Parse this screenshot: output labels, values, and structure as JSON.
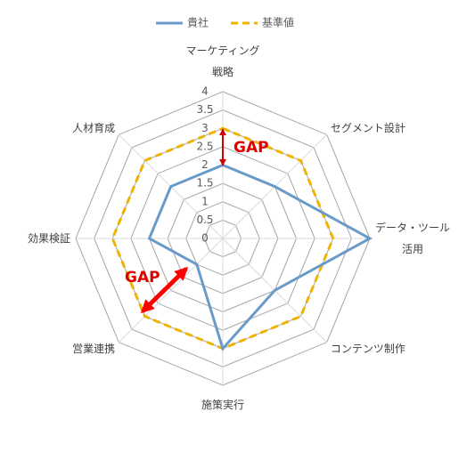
{
  "chart_data": {
    "type": "radar",
    "categories": [
      "マーケティング\n戦略",
      "セグメント設計",
      "データ・ツール\n活用",
      "コンテンツ制作",
      "施策実行",
      "営業連携",
      "効果検証",
      "人材育成"
    ],
    "series": [
      {
        "name": "貴社",
        "color": "#6a9bc8",
        "dash": false,
        "values": [
          2,
          2,
          4,
          2,
          3,
          1,
          2,
          2
        ]
      },
      {
        "name": "基準値",
        "color": "#f0b400",
        "dash": true,
        "values": [
          3,
          3,
          3,
          3,
          3,
          3,
          3,
          3
        ]
      }
    ],
    "ylim": [
      0,
      4
    ],
    "yticks": [
      0,
      0.5,
      1,
      1.5,
      2,
      2.5,
      3,
      3.5,
      4
    ],
    "grid": true,
    "legend": "top",
    "annotations": [
      "GAP",
      "GAP"
    ]
  }
}
